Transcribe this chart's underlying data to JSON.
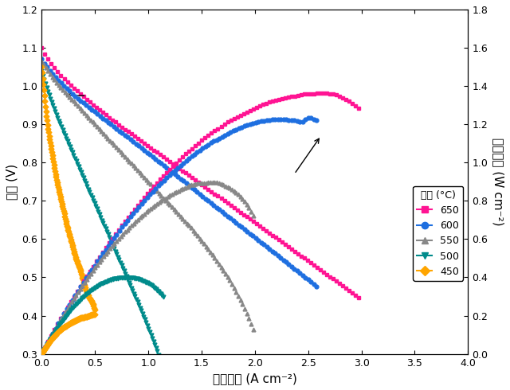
{
  "xlabel": "전류밀도 (A cm⁻²)",
  "ylabel_left": "전압 (V)",
  "ylabel_right": "전력밀도 (W cm⁻²)",
  "legend_title": "온도 (°C)",
  "xlim": [
    0,
    4.0
  ],
  "ylim_left": [
    0.3,
    1.2
  ],
  "ylim_right": [
    0.0,
    1.8
  ],
  "xticks": [
    0.0,
    0.5,
    1.0,
    1.5,
    2.0,
    2.5,
    3.0,
    3.5,
    4.0
  ],
  "yticks_left": [
    0.3,
    0.4,
    0.5,
    0.6,
    0.7,
    0.8,
    0.9,
    1.0,
    1.1,
    1.2
  ],
  "yticks_right": [
    0.0,
    0.2,
    0.4,
    0.6,
    0.8,
    1.0,
    1.2,
    1.4,
    1.6,
    1.8
  ],
  "temperatures": [
    650,
    600,
    550,
    500,
    450
  ],
  "colors": [
    "#FF1493",
    "#1E6FE0",
    "#888888",
    "#008B8B",
    "#FFA500"
  ],
  "markers": [
    "s",
    "o",
    "^",
    "v",
    "D"
  ],
  "voltage_data": {
    "650": {
      "x": [
        0.0,
        0.05,
        0.1,
        0.15,
        0.2,
        0.25,
        0.3,
        0.35,
        0.4,
        0.45,
        0.5,
        0.55,
        0.6,
        0.65,
        0.7,
        0.75,
        0.8,
        0.85,
        0.9,
        0.95,
        1.0,
        1.05,
        1.1,
        1.15,
        1.2,
        1.25,
        1.3,
        1.35,
        1.4,
        1.45,
        1.5,
        1.55,
        1.6,
        1.65,
        1.7,
        1.75,
        1.8,
        1.85,
        1.9,
        1.95,
        2.0,
        2.05,
        2.1,
        2.15,
        2.2,
        2.25,
        2.3,
        2.35,
        2.4,
        2.45,
        2.5,
        2.55,
        2.6,
        2.65,
        2.7,
        2.75,
        2.8,
        2.85,
        2.9,
        2.95,
        3.0
      ],
      "y": [
        1.1,
        1.075,
        1.055,
        1.038,
        1.022,
        1.008,
        0.995,
        0.982,
        0.97,
        0.958,
        0.947,
        0.936,
        0.925,
        0.914,
        0.904,
        0.893,
        0.883,
        0.873,
        0.863,
        0.853,
        0.843,
        0.833,
        0.823,
        0.813,
        0.803,
        0.793,
        0.783,
        0.773,
        0.763,
        0.753,
        0.743,
        0.733,
        0.723,
        0.713,
        0.703,
        0.693,
        0.683,
        0.673,
        0.663,
        0.653,
        0.643,
        0.633,
        0.623,
        0.613,
        0.603,
        0.593,
        0.583,
        0.573,
        0.563,
        0.553,
        0.543,
        0.533,
        0.523,
        0.513,
        0.503,
        0.493,
        0.483,
        0.473,
        0.463,
        0.453,
        0.443
      ]
    },
    "600": {
      "x": [
        0.0,
        0.05,
        0.1,
        0.15,
        0.2,
        0.25,
        0.3,
        0.35,
        0.4,
        0.45,
        0.5,
        0.55,
        0.6,
        0.65,
        0.7,
        0.75,
        0.8,
        0.85,
        0.9,
        0.95,
        1.0,
        1.05,
        1.1,
        1.15,
        1.2,
        1.25,
        1.3,
        1.35,
        1.4,
        1.45,
        1.5,
        1.55,
        1.6,
        1.65,
        1.7,
        1.75,
        1.8,
        1.85,
        1.9,
        1.95,
        2.0,
        2.05,
        2.1,
        2.15,
        2.2,
        2.25,
        2.3,
        2.35,
        2.4,
        2.45,
        2.5,
        2.55,
        2.6
      ],
      "y": [
        1.07,
        1.05,
        1.033,
        1.017,
        1.003,
        0.99,
        0.977,
        0.965,
        0.954,
        0.943,
        0.932,
        0.921,
        0.91,
        0.9,
        0.889,
        0.878,
        0.868,
        0.857,
        0.846,
        0.835,
        0.824,
        0.813,
        0.802,
        0.791,
        0.78,
        0.769,
        0.758,
        0.747,
        0.736,
        0.725,
        0.714,
        0.703,
        0.692,
        0.681,
        0.67,
        0.659,
        0.648,
        0.637,
        0.626,
        0.615,
        0.604,
        0.593,
        0.582,
        0.571,
        0.56,
        0.549,
        0.538,
        0.527,
        0.516,
        0.505,
        0.494,
        0.483,
        0.472
      ]
    },
    "550": {
      "x": [
        0.0,
        0.05,
        0.1,
        0.15,
        0.2,
        0.25,
        0.3,
        0.35,
        0.4,
        0.45,
        0.5,
        0.55,
        0.6,
        0.65,
        0.7,
        0.75,
        0.8,
        0.85,
        0.9,
        0.95,
        1.0,
        1.05,
        1.1,
        1.15,
        1.2,
        1.25,
        1.3,
        1.35,
        1.4,
        1.45,
        1.5,
        1.55,
        1.6,
        1.65,
        1.7,
        1.75,
        1.8,
        1.85,
        1.9,
        1.95,
        2.0
      ],
      "y": [
        1.065,
        1.043,
        1.024,
        1.006,
        0.99,
        0.975,
        0.96,
        0.945,
        0.93,
        0.915,
        0.9,
        0.885,
        0.87,
        0.855,
        0.84,
        0.825,
        0.81,
        0.795,
        0.78,
        0.765,
        0.75,
        0.735,
        0.72,
        0.705,
        0.69,
        0.675,
        0.66,
        0.645,
        0.63,
        0.613,
        0.596,
        0.578,
        0.56,
        0.54,
        0.52,
        0.498,
        0.474,
        0.448,
        0.42,
        0.388,
        0.35
      ]
    },
    "500": {
      "x": [
        0.0,
        0.025,
        0.05,
        0.075,
        0.1,
        0.125,
        0.15,
        0.175,
        0.2,
        0.225,
        0.25,
        0.275,
        0.3,
        0.325,
        0.35,
        0.375,
        0.4,
        0.425,
        0.45,
        0.475,
        0.5,
        0.525,
        0.55,
        0.575,
        0.6,
        0.625,
        0.65,
        0.675,
        0.7,
        0.725,
        0.75,
        0.775,
        0.8,
        0.85,
        0.9,
        0.95,
        1.0,
        1.05,
        1.1,
        1.15
      ],
      "y": [
        1.04,
        1.015,
        0.993,
        0.972,
        0.953,
        0.935,
        0.917,
        0.9,
        0.883,
        0.867,
        0.851,
        0.835,
        0.819,
        0.803,
        0.787,
        0.771,
        0.755,
        0.739,
        0.723,
        0.707,
        0.691,
        0.675,
        0.659,
        0.643,
        0.627,
        0.611,
        0.595,
        0.579,
        0.563,
        0.547,
        0.531,
        0.515,
        0.499,
        0.467,
        0.435,
        0.402,
        0.368,
        0.332,
        0.294,
        0.255
      ]
    },
    "450": {
      "x": [
        0.0,
        0.01,
        0.02,
        0.03,
        0.05,
        0.07,
        0.1,
        0.13,
        0.16,
        0.2,
        0.24,
        0.28,
        0.32,
        0.36,
        0.4,
        0.44,
        0.48,
        0.5
      ],
      "y": [
        1.05,
        1.02,
        0.99,
        0.96,
        0.91,
        0.87,
        0.82,
        0.77,
        0.73,
        0.68,
        0.63,
        0.59,
        0.55,
        0.52,
        0.48,
        0.45,
        0.43,
        0.41
      ]
    }
  },
  "power_data": {
    "650": {
      "x": [
        0.0,
        0.05,
        0.1,
        0.15,
        0.2,
        0.25,
        0.3,
        0.35,
        0.4,
        0.45,
        0.5,
        0.55,
        0.6,
        0.65,
        0.7,
        0.75,
        0.8,
        0.85,
        0.9,
        0.95,
        1.0,
        1.05,
        1.1,
        1.15,
        1.2,
        1.25,
        1.3,
        1.35,
        1.4,
        1.45,
        1.5,
        1.55,
        1.6,
        1.65,
        1.7,
        1.75,
        1.8,
        1.85,
        1.9,
        1.95,
        2.0,
        2.05,
        2.1,
        2.15,
        2.2,
        2.25,
        2.3,
        2.35,
        2.4,
        2.45,
        2.5,
        2.55,
        2.6,
        2.65,
        2.7,
        2.75,
        2.8,
        2.85,
        2.9,
        2.95,
        3.0
      ],
      "y": [
        0.0,
        0.054,
        0.106,
        0.156,
        0.204,
        0.252,
        0.299,
        0.344,
        0.388,
        0.431,
        0.474,
        0.515,
        0.555,
        0.594,
        0.633,
        0.67,
        0.707,
        0.742,
        0.777,
        0.811,
        0.843,
        0.875,
        0.905,
        0.935,
        0.964,
        0.991,
        1.018,
        1.044,
        1.068,
        1.09,
        1.115,
        1.138,
        1.157,
        1.176,
        1.196,
        1.214,
        1.229,
        1.244,
        1.258,
        1.272,
        1.286,
        1.298,
        1.31,
        1.32,
        1.327,
        1.333,
        1.342,
        1.346,
        1.35,
        1.356,
        1.358,
        1.36,
        1.362,
        1.363,
        1.36,
        1.355,
        1.346,
        1.333,
        1.316,
        1.295,
        1.27
      ]
    },
    "600": {
      "x": [
        0.0,
        0.05,
        0.1,
        0.15,
        0.2,
        0.25,
        0.3,
        0.35,
        0.4,
        0.45,
        0.5,
        0.55,
        0.6,
        0.65,
        0.7,
        0.75,
        0.8,
        0.85,
        0.9,
        0.95,
        1.0,
        1.05,
        1.1,
        1.15,
        1.2,
        1.25,
        1.3,
        1.35,
        1.4,
        1.45,
        1.5,
        1.55,
        1.6,
        1.65,
        1.7,
        1.75,
        1.8,
        1.85,
        1.9,
        1.95,
        2.0,
        2.05,
        2.1,
        2.15,
        2.2,
        2.25,
        2.3,
        2.35,
        2.4,
        2.45,
        2.5,
        2.55,
        2.6
      ],
      "y": [
        0.0,
        0.053,
        0.103,
        0.153,
        0.201,
        0.248,
        0.293,
        0.338,
        0.382,
        0.424,
        0.466,
        0.507,
        0.546,
        0.585,
        0.622,
        0.659,
        0.694,
        0.728,
        0.762,
        0.793,
        0.824,
        0.853,
        0.882,
        0.909,
        0.936,
        0.961,
        0.985,
        1.008,
        1.03,
        1.051,
        1.071,
        1.089,
        1.107,
        1.122,
        1.138,
        1.153,
        1.166,
        1.178,
        1.19,
        1.2,
        1.208,
        1.215,
        1.22,
        1.224,
        1.225,
        1.225,
        1.224,
        1.222,
        1.218,
        1.213,
        1.235,
        1.228,
        1.227
      ]
    },
    "550": {
      "x": [
        0.0,
        0.05,
        0.1,
        0.15,
        0.2,
        0.25,
        0.3,
        0.35,
        0.4,
        0.45,
        0.5,
        0.55,
        0.6,
        0.65,
        0.7,
        0.75,
        0.8,
        0.85,
        0.9,
        0.95,
        1.0,
        1.05,
        1.1,
        1.15,
        1.2,
        1.25,
        1.3,
        1.35,
        1.4,
        1.45,
        1.5,
        1.55,
        1.6,
        1.65,
        1.7,
        1.75,
        1.8,
        1.85,
        1.9,
        1.95,
        2.0
      ],
      "y": [
        0.0,
        0.052,
        0.102,
        0.151,
        0.198,
        0.244,
        0.288,
        0.331,
        0.372,
        0.412,
        0.45,
        0.487,
        0.522,
        0.556,
        0.588,
        0.619,
        0.648,
        0.676,
        0.702,
        0.727,
        0.75,
        0.771,
        0.792,
        0.811,
        0.828,
        0.844,
        0.858,
        0.871,
        0.882,
        0.89,
        0.894,
        0.895,
        0.896,
        0.895,
        0.884,
        0.871,
        0.854,
        0.83,
        0.798,
        0.757,
        0.7
      ]
    },
    "500": {
      "x": [
        0.0,
        0.025,
        0.05,
        0.075,
        0.1,
        0.125,
        0.15,
        0.175,
        0.2,
        0.225,
        0.25,
        0.275,
        0.3,
        0.325,
        0.35,
        0.375,
        0.4,
        0.425,
        0.45,
        0.475,
        0.5,
        0.525,
        0.55,
        0.575,
        0.6,
        0.625,
        0.65,
        0.675,
        0.7,
        0.725,
        0.75,
        0.775,
        0.8,
        0.85,
        0.9,
        0.95,
        1.0,
        1.05,
        1.1,
        1.15
      ],
      "y": [
        0.0,
        0.025,
        0.05,
        0.073,
        0.095,
        0.117,
        0.138,
        0.158,
        0.177,
        0.195,
        0.213,
        0.23,
        0.246,
        0.261,
        0.275,
        0.289,
        0.302,
        0.314,
        0.325,
        0.336,
        0.346,
        0.354,
        0.362,
        0.37,
        0.376,
        0.382,
        0.387,
        0.391,
        0.394,
        0.396,
        0.398,
        0.399,
        0.399,
        0.397,
        0.392,
        0.382,
        0.368,
        0.349,
        0.323,
        0.293
      ]
    },
    "450": {
      "x": [
        0.0,
        0.01,
        0.02,
        0.03,
        0.05,
        0.07,
        0.1,
        0.13,
        0.16,
        0.2,
        0.24,
        0.28,
        0.32,
        0.36,
        0.4,
        0.44,
        0.48,
        0.5
      ],
      "y": [
        0.0,
        0.01,
        0.02,
        0.029,
        0.046,
        0.061,
        0.082,
        0.1,
        0.117,
        0.136,
        0.151,
        0.165,
        0.176,
        0.187,
        0.192,
        0.198,
        0.206,
        0.205
      ]
    }
  }
}
